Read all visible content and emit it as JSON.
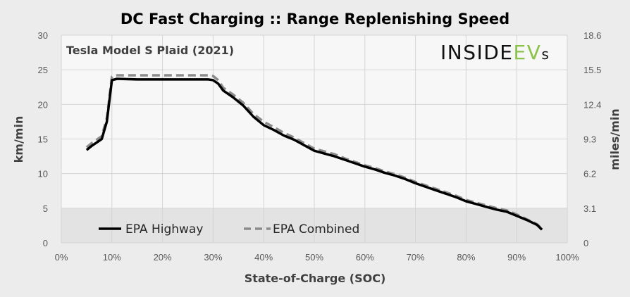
{
  "chart_data": {
    "type": "line",
    "title": "DC Fast Charging :: Range Replenishing Speed",
    "subtitle": "Tesla Model S Plaid (2021)",
    "logo": {
      "text_main": "INSIDE",
      "text_accent": "EV",
      "text_suffix": "s",
      "accent_color": "#8bc34a"
    },
    "xlabel": "State-of-Charge  (SOC)",
    "ylabel": "km/min",
    "ylabel_right": "miles/min",
    "xlim": [
      0,
      100
    ],
    "ylim": [
      0,
      30
    ],
    "ylim_right": [
      0,
      18.6
    ],
    "x_ticks": [
      "0%",
      "10%",
      "20%",
      "30%",
      "40%",
      "50%",
      "60%",
      "70%",
      "80%",
      "90%",
      "100%"
    ],
    "y_ticks": [
      "0",
      "5",
      "10",
      "15",
      "20",
      "25",
      "30"
    ],
    "y_ticks_right": [
      "0",
      "3.1",
      "6.2",
      "9.3",
      "12.4",
      "15.5",
      "18.6"
    ],
    "shaded_band": {
      "y_from": 0,
      "y_to": 5
    },
    "grid": true,
    "legend_position": "bottom-left",
    "series": [
      {
        "name": "EPA Highway",
        "color": "#000000",
        "style": "solid",
        "x": [
          5,
          6,
          7,
          8,
          9,
          10,
          11,
          15,
          20,
          25,
          29,
          30,
          31,
          32,
          34,
          36,
          38,
          40,
          42,
          44,
          46,
          48,
          50,
          52,
          54,
          56,
          58,
          60,
          62,
          64,
          66,
          68,
          70,
          72,
          74,
          76,
          78,
          80,
          82,
          84,
          86,
          88,
          90,
          92,
          94,
          95
        ],
        "y": [
          13.4,
          14.0,
          14.5,
          15.0,
          17.5,
          23.5,
          23.7,
          23.6,
          23.6,
          23.6,
          23.6,
          23.5,
          23.0,
          22.0,
          21.0,
          19.8,
          18.2,
          17.0,
          16.3,
          15.5,
          14.9,
          14.1,
          13.3,
          12.9,
          12.5,
          12.0,
          11.5,
          11.0,
          10.6,
          10.1,
          9.7,
          9.2,
          8.6,
          8.1,
          7.6,
          7.1,
          6.6,
          6.0,
          5.6,
          5.2,
          4.8,
          4.5,
          3.9,
          3.3,
          2.6,
          1.9
        ]
      },
      {
        "name": "EPA Combined",
        "color": "#8c8c8c",
        "style": "dashed",
        "x": [
          5,
          6,
          7,
          8,
          9,
          10,
          11,
          15,
          20,
          25,
          29,
          30,
          31,
          32,
          34,
          36,
          38,
          40,
          42,
          44,
          46,
          48,
          50,
          52,
          54,
          56,
          58,
          60,
          62,
          64,
          66,
          68,
          70,
          72,
          74,
          76,
          78,
          80,
          82,
          84,
          86,
          88,
          90,
          92,
          94,
          95
        ],
        "y": [
          13.8,
          14.4,
          14.9,
          15.4,
          18.0,
          24.0,
          24.2,
          24.2,
          24.2,
          24.2,
          24.2,
          24.1,
          23.5,
          22.4,
          21.4,
          20.2,
          18.6,
          17.5,
          16.7,
          15.9,
          15.2,
          14.4,
          13.6,
          13.2,
          12.8,
          12.2,
          11.7,
          11.2,
          10.8,
          10.3,
          9.9,
          9.4,
          8.8,
          8.3,
          7.8,
          7.3,
          6.8,
          6.2,
          5.8,
          5.4,
          5.0,
          4.7,
          4.1,
          3.4,
          2.7,
          2.0
        ]
      }
    ]
  }
}
